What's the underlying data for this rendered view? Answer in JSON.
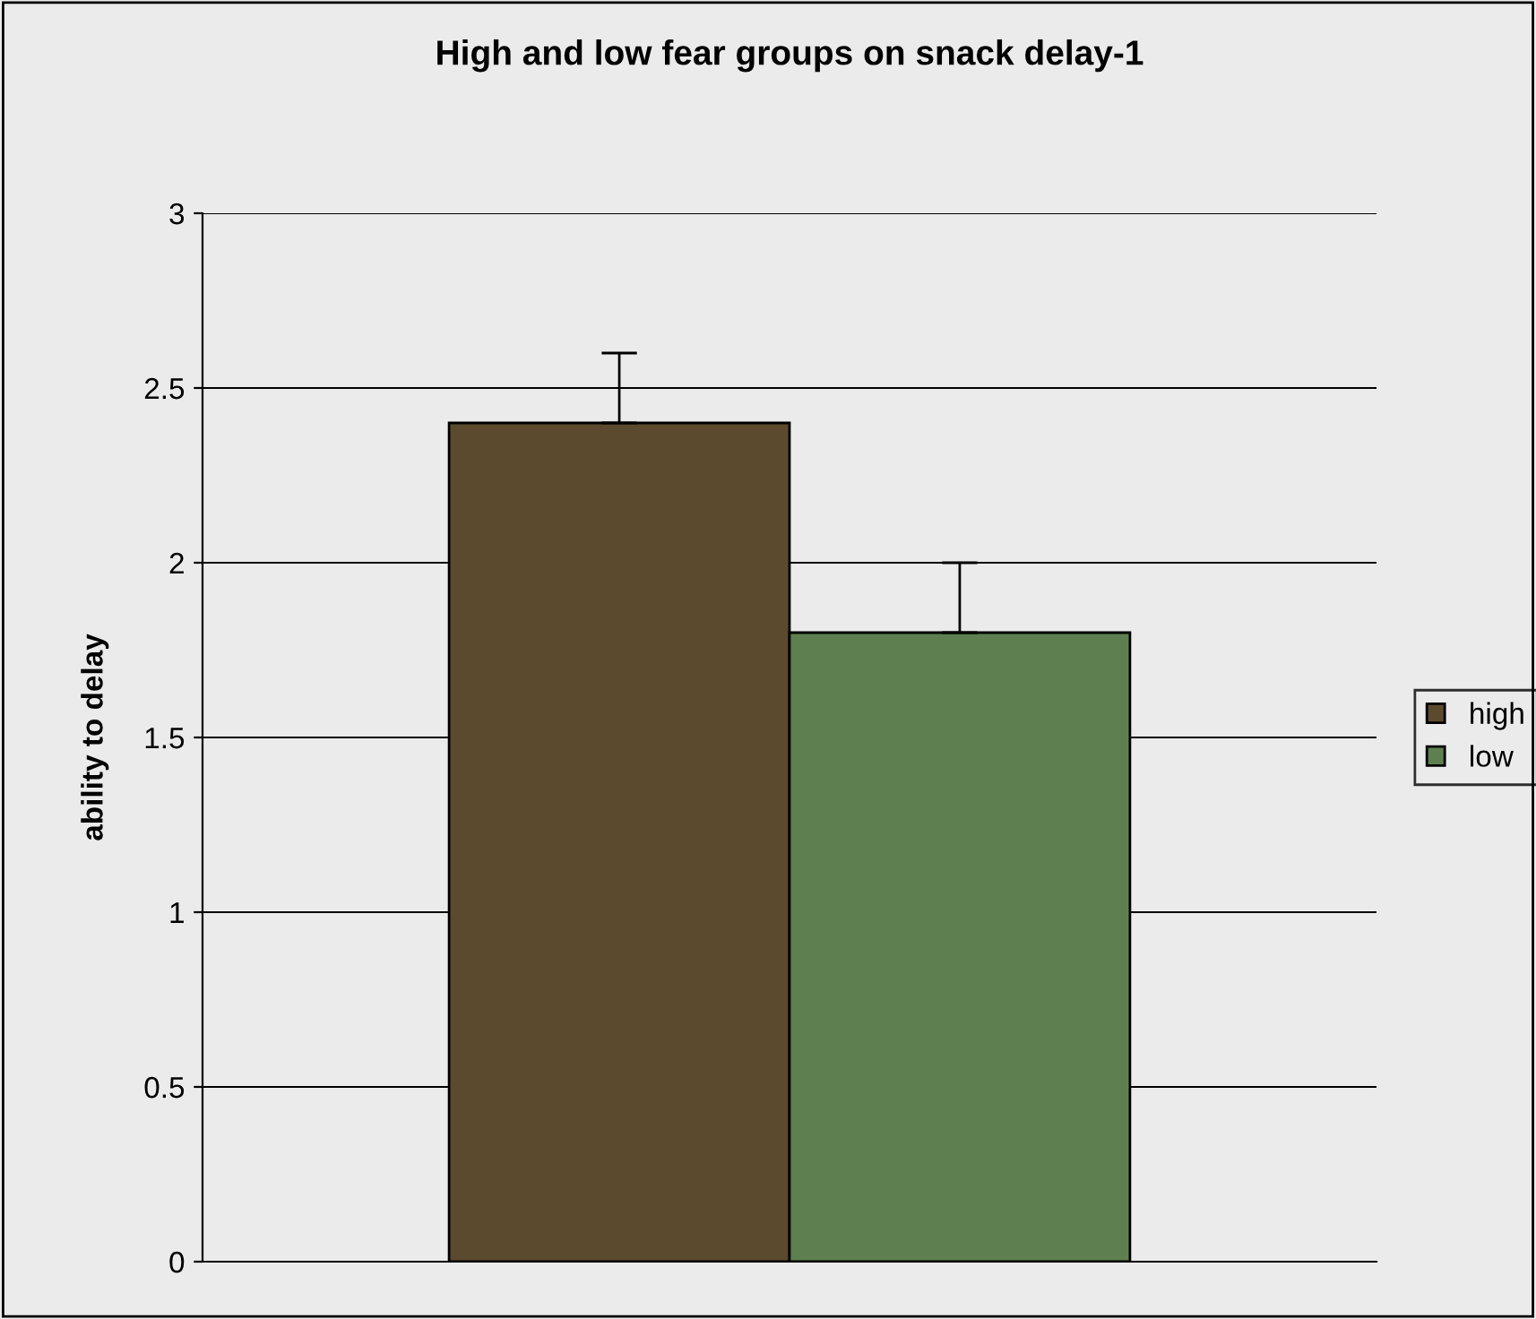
{
  "chart_data": {
    "type": "bar",
    "title": "High and low fear groups on snack delay-1",
    "ylabel": "ability to delay",
    "categories": [
      null
    ],
    "series": [
      {
        "name": "high",
        "color": "#5b4a2e",
        "values": [
          2.4
        ],
        "errors": [
          [
            2.4,
            2.6
          ]
        ]
      },
      {
        "name": "low",
        "color": "#5e8050",
        "values": [
          1.8
        ],
        "errors": [
          [
            1.8,
            2.0
          ]
        ]
      }
    ],
    "ylim": [
      0,
      3
    ],
    "yticks": [
      0,
      0.5,
      1,
      1.5,
      2,
      2.5,
      3
    ],
    "grid": "y",
    "legend": "right"
  }
}
